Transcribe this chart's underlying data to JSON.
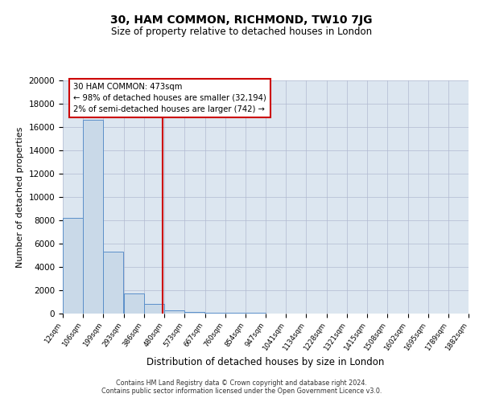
{
  "title1": "30, HAM COMMON, RICHMOND, TW10 7JG",
  "title2": "Size of property relative to detached houses in London",
  "xlabel": "Distribution of detached houses by size in London",
  "ylabel": "Number of detached properties",
  "bar_left_edges": [
    12,
    106,
    199,
    293,
    386,
    480,
    573,
    667,
    760,
    854,
    947,
    1041,
    1134,
    1228,
    1321,
    1415,
    1508,
    1602,
    1695,
    1789
  ],
  "bar_heights": [
    8200,
    16600,
    5300,
    1750,
    800,
    300,
    150,
    100,
    75,
    50,
    0,
    0,
    0,
    0,
    0,
    0,
    0,
    0,
    0,
    0
  ],
  "bin_width": 93,
  "bar_color": "#c9d9e8",
  "bar_edge_color": "#5b8fc9",
  "marker_x": 473,
  "marker_color": "#cc0000",
  "annotation_line1": "30 HAM COMMON: 473sqm",
  "annotation_line2": "← 98% of detached houses are smaller (32,194)",
  "annotation_line3": "2% of semi-detached houses are larger (742) →",
  "annotation_box_color": "#ffffff",
  "annotation_box_edge": "#cc0000",
  "tick_labels": [
    "12sqm",
    "106sqm",
    "199sqm",
    "293sqm",
    "386sqm",
    "480sqm",
    "573sqm",
    "667sqm",
    "760sqm",
    "854sqm",
    "947sqm",
    "1041sqm",
    "1134sqm",
    "1228sqm",
    "1321sqm",
    "1415sqm",
    "1508sqm",
    "1602sqm",
    "1695sqm",
    "1789sqm",
    "1882sqm"
  ],
  "ylim": [
    0,
    20000
  ],
  "xlim": [
    12,
    1882
  ],
  "yticks": [
    0,
    2000,
    4000,
    6000,
    8000,
    10000,
    12000,
    14000,
    16000,
    18000,
    20000
  ],
  "background_color": "#dce6f0",
  "grid_color": "#b0b8d0",
  "footer1": "Contains HM Land Registry data © Crown copyright and database right 2024.",
  "footer2": "Contains public sector information licensed under the Open Government Licence v3.0."
}
